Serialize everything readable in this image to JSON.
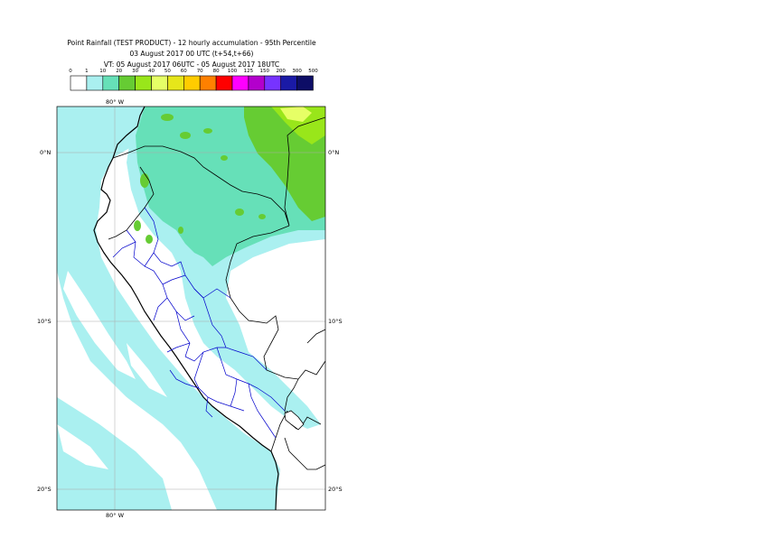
{
  "title": {
    "line1": "Point Rainfall (TEST PRODUCT) - 12 hourly accumulation - 95th Percentile",
    "line2": "03 August 2017 00 UTC (t+54,t+66)",
    "line3": "VT: 05 August 2017 06UTC - 05 August 2017 18UTC"
  },
  "legend": {
    "ticks": [
      "0",
      "1",
      "10",
      "20",
      "30",
      "40",
      "50",
      "60",
      "70",
      "80",
      "100",
      "125",
      "150",
      "200",
      "300",
      "500"
    ],
    "colors": [
      "#ffffff",
      "#aaf0f0",
      "#66e0b8",
      "#66cc33",
      "#99e61a",
      "#e6ff66",
      "#e6e61a",
      "#ffcc00",
      "#ff8000",
      "#ff0000",
      "#ff00ff",
      "#b300cc",
      "#7733ff",
      "#1a1aa6",
      "#0d0d66"
    ]
  },
  "axes": {
    "lon_top": "80° W",
    "lon_bottom": "80° W",
    "lat_right": [
      "0°N",
      "10°S",
      "20°S"
    ],
    "lat_left": [
      "0°N",
      "10°S",
      "20°S"
    ]
  },
  "map_colors": {
    "ocean_rain": "#aaf0f0",
    "rain_10": "#66e0b8",
    "rain_20": "#66cc33",
    "rain_30": "#99e61a",
    "rain_40": "#e6ff66",
    "coast": "#000000",
    "admin": "#0000cc"
  }
}
